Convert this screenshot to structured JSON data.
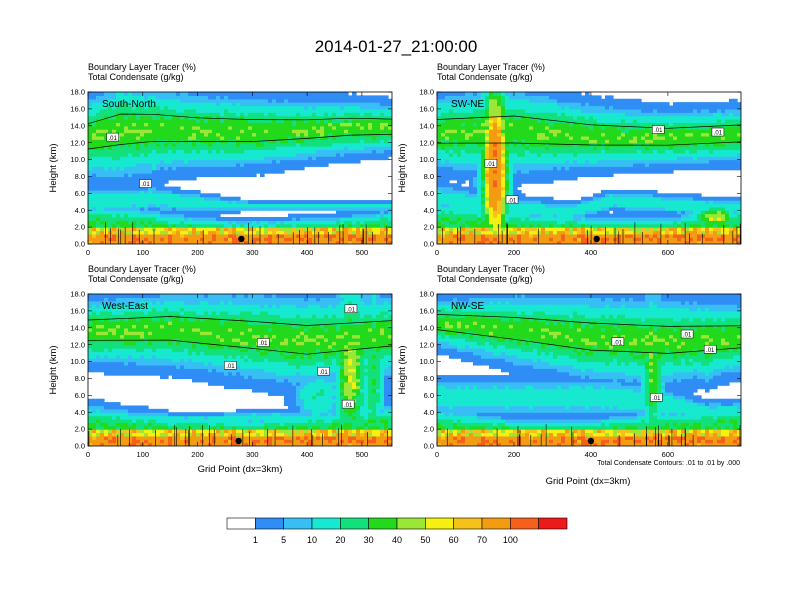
{
  "title": "2014-01-27_21:00:00",
  "colors": {
    "levels": [
      "#ffffff",
      "#2f8df5",
      "#37bff5",
      "#17e8d0",
      "#12e07a",
      "#23d91c",
      "#9be637",
      "#f4f011",
      "#f4c21a",
      "#f39c12",
      "#f5601d",
      "#ee1a1a"
    ]
  },
  "colorbar": {
    "labels": [
      "1",
      "5",
      "10",
      "20",
      "30",
      "40",
      "50",
      "60",
      "70",
      "100"
    ]
  },
  "note": "Total Condensate Contours: .01 to .01 by .000",
  "chart_data": [
    {
      "type": "heatmap",
      "label": "South-North",
      "title_line1": "Boundary Layer Tracer   (%)",
      "title_line2": "Total Condensate   (g/kg)",
      "xlabel": "",
      "ylabel": "Height (km)",
      "xlim": [
        0,
        555
      ],
      "ylim": [
        0,
        18
      ],
      "xticks": [
        "0",
        "100",
        "200",
        "300",
        "400",
        "500"
      ],
      "xtick_values": [
        0,
        100,
        200,
        300,
        400,
        500
      ],
      "yticks": [
        "0.0",
        "2.0",
        "4.0",
        "6.0",
        "8.0",
        "10.0",
        "12.0",
        "14.0",
        "16.0",
        "18.0"
      ],
      "contour_labels": [
        ".01",
        ".01"
      ],
      "contour_label_pos": [
        [
          45,
          12.6
        ],
        [
          105,
          7.1
        ]
      ],
      "marker_x": 280,
      "upper_band": [
        [
          0,
          12.6,
          3.0
        ],
        [
          60,
          13.4,
          3.6
        ],
        [
          120,
          13.6,
          3.2
        ],
        [
          200,
          13.4,
          2.8
        ],
        [
          300,
          13.3,
          2.6
        ],
        [
          400,
          13.5,
          2.2
        ],
        [
          480,
          13.8,
          2.0
        ],
        [
          555,
          13.8,
          1.8
        ]
      ],
      "lower_band": [
        [
          0,
          2.6,
          1.6
        ],
        [
          80,
          2.4,
          1.4
        ],
        [
          150,
          2.0,
          1.1
        ],
        [
          250,
          1.6,
          0.9
        ],
        [
          350,
          1.6,
          0.9
        ],
        [
          450,
          1.8,
          1.0
        ],
        [
          555,
          2.2,
          1.2
        ]
      ],
      "cores": [
        [
          60,
          12.5,
          10,
          1.2,
          1.2
        ],
        [
          120,
          10.0,
          20,
          3.5,
          1.0
        ],
        [
          300,
          12.5,
          100,
          1.2,
          0.6
        ]
      ],
      "mid_band": [
        [
          0,
          5.2,
          1.3
        ],
        [
          120,
          5.4,
          1.2
        ],
        [
          220,
          4.8,
          0.8
        ],
        [
          300,
          4.5,
          0.4
        ]
      ]
    },
    {
      "type": "heatmap",
      "label": "SW-NE",
      "title_line1": "Boundary Layer Tracer   (%)",
      "title_line2": "Total Condensate   (g/kg)",
      "xlabel": "",
      "ylabel": "Height (km)",
      "xlim": [
        0,
        790
      ],
      "ylim": [
        0,
        18
      ],
      "xticks": [
        "0",
        "200",
        "400",
        "600"
      ],
      "xtick_values": [
        0,
        200,
        400,
        600
      ],
      "yticks": [
        "0.0",
        "2.0",
        "4.0",
        "6.0",
        "8.0",
        "10.0",
        "12.0",
        "14.0",
        "16.0",
        "18.0"
      ],
      "contour_labels": [
        ".01",
        ".01",
        ".01",
        ".01"
      ],
      "contour_label_pos": [
        [
          140,
          9.5
        ],
        [
          195,
          5.2
        ],
        [
          575,
          13.5
        ],
        [
          730,
          13.2
        ]
      ],
      "marker_x": 415,
      "upper_band": [
        [
          0,
          13.2,
          2.8
        ],
        [
          200,
          13.4,
          3.2
        ],
        [
          400,
          12.8,
          2.4
        ],
        [
          600,
          12.6,
          2.0
        ],
        [
          790,
          13.0,
          2.0
        ]
      ],
      "lower_band": [
        [
          0,
          2.8,
          1.8
        ],
        [
          200,
          2.2,
          1.2
        ],
        [
          400,
          1.8,
          1.0
        ],
        [
          600,
          1.8,
          1.0
        ],
        [
          790,
          2.4,
          1.4
        ]
      ],
      "cores": [
        [
          150,
          9.0,
          100,
          25,
          7.0
        ],
        [
          720,
          3.2,
          50,
          40,
          1.0
        ]
      ],
      "mid_band": [
        [
          0,
          5.5,
          1.4
        ],
        [
          150,
          4.5,
          1.2
        ],
        [
          350,
          3.8,
          0.8
        ],
        [
          450,
          5.2,
          0.9
        ],
        [
          650,
          4.6,
          0.9
        ],
        [
          790,
          4.2,
          0.8
        ]
      ]
    },
    {
      "type": "heatmap",
      "label": "West-East",
      "title_line1": "Boundary Layer Tracer   (%)",
      "title_line2": "Total Condensate   (g/kg)",
      "xlabel": "Grid Point (dx=3km)",
      "ylabel": "Height (km)",
      "xlim": [
        0,
        555
      ],
      "ylim": [
        0,
        18
      ],
      "xticks": [
        "0",
        "100",
        "200",
        "300",
        "400",
        "500"
      ],
      "xtick_values": [
        0,
        100,
        200,
        300,
        400,
        500
      ],
      "yticks": [
        "0.0",
        "2.0",
        "4.0",
        "6.0",
        "8.0",
        "10.0",
        "12.0",
        "14.0",
        "16.0",
        "18.0"
      ],
      "contour_labels": [
        ".01",
        ".01",
        ".01",
        ".01",
        ".01"
      ],
      "contour_label_pos": [
        [
          320,
          12.2
        ],
        [
          260,
          9.5
        ],
        [
          430,
          8.8
        ],
        [
          480,
          16.2
        ],
        [
          475,
          4.9
        ]
      ],
      "marker_x": 275,
      "upper_band": [
        [
          0,
          13.6,
          2.4
        ],
        [
          150,
          13.8,
          2.8
        ],
        [
          300,
          13.0,
          3.2
        ],
        [
          400,
          12.4,
          3.4
        ],
        [
          555,
          13.2,
          3.0
        ]
      ],
      "lower_band": [
        [
          0,
          2.6,
          1.6
        ],
        [
          150,
          2.0,
          1.1
        ],
        [
          300,
          1.8,
          1.0
        ],
        [
          450,
          2.2,
          1.4
        ],
        [
          555,
          2.6,
          1.6
        ]
      ],
      "cores": [
        [
          480,
          9.0,
          50,
          20,
          7.0
        ],
        [
          520,
          9.0,
          30,
          15,
          7.0
        ],
        [
          420,
          6.0,
          20,
          30,
          2.0
        ]
      ],
      "mid_band": [
        [
          0,
          3.2,
          0.8
        ],
        [
          100,
          3.2,
          0.8
        ],
        [
          200,
          3.0,
          0.6
        ],
        [
          300,
          3.4,
          0.6
        ]
      ]
    },
    {
      "type": "heatmap",
      "label": "NW-SE",
      "title_line1": "Boundary Layer Tracer   (%)",
      "title_line2": "Total Condensate   (g/kg)",
      "xlabel": "",
      "ylabel": "Height (km)",
      "xlim": [
        0,
        790
      ],
      "ylim": [
        0,
        18
      ],
      "xticks": [
        "0",
        "200",
        "400",
        "600"
      ],
      "xtick_values": [
        0,
        200,
        400,
        600
      ],
      "yticks": [
        "0.0",
        "2.0",
        "4.0",
        "6.0",
        "8.0",
        "10.0",
        "12.0",
        "14.0",
        "16.0",
        "18.0"
      ],
      "contour_labels": [
        ".01",
        ".01",
        ".01",
        ".01"
      ],
      "contour_label_pos": [
        [
          470,
          12.3
        ],
        [
          570,
          5.7
        ],
        [
          650,
          13.2
        ],
        [
          710,
          11.4
        ]
      ],
      "marker_x": 400,
      "upper_band": [
        [
          0,
          14.6,
          1.8
        ],
        [
          200,
          13.8,
          2.6
        ],
        [
          400,
          12.8,
          3.2
        ],
        [
          600,
          12.4,
          3.2
        ],
        [
          790,
          12.8,
          2.6
        ]
      ],
      "lower_band": [
        [
          0,
          2.4,
          1.4
        ],
        [
          200,
          1.8,
          1.0
        ],
        [
          400,
          1.8,
          1.0
        ],
        [
          600,
          2.2,
          1.4
        ],
        [
          790,
          2.6,
          1.6
        ]
      ],
      "cores": [
        [
          560,
          9.0,
          40,
          20,
          6.0
        ],
        [
          700,
          11.0,
          30,
          25,
          2.0
        ]
      ],
      "mid_band": [
        [
          450,
          5.8,
          1.8
        ],
        [
          600,
          5.0,
          1.5
        ],
        [
          700,
          4.0,
          1.0
        ]
      ]
    }
  ]
}
